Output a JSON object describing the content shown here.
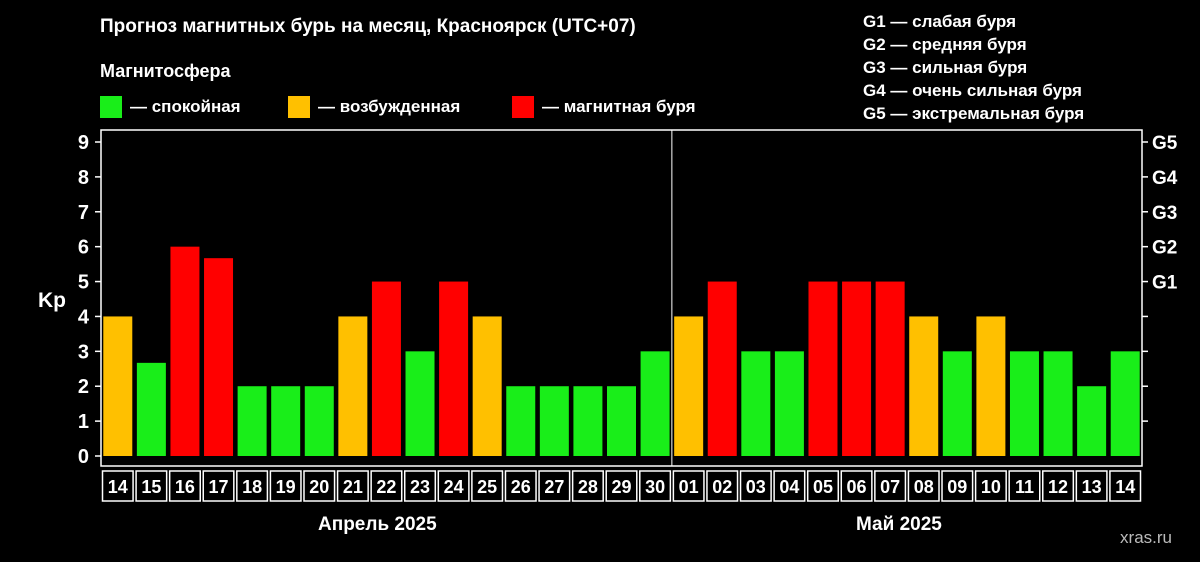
{
  "title": "Прогноз магнитных бурь на месяц, Красноярск (UTC+07)",
  "legend": {
    "title": "Магнитосфера",
    "items": [
      {
        "key": "calm",
        "label": "— спокойная",
        "color": "#19ee19"
      },
      {
        "key": "excited",
        "label": "— возбужденная",
        "color": "#ffc000"
      },
      {
        "key": "storm",
        "label": "— магнитная буря",
        "color": "#ff0000"
      }
    ]
  },
  "g_scale": [
    {
      "label": "G1 — слабая буря"
    },
    {
      "label": "G2 — средняя буря"
    },
    {
      "label": "G3 — сильная буря"
    },
    {
      "label": "G4 — очень сильная буря"
    },
    {
      "label": "G5 — экстремальная буря"
    }
  ],
  "months": [
    {
      "label": "Апрель 2025"
    },
    {
      "label": "Май 2025"
    }
  ],
  "source": "xras.ru",
  "chart_data": {
    "type": "bar",
    "ylabel": "Kp",
    "ylim": [
      0,
      9
    ],
    "y_ticks": [
      "0",
      "1",
      "2",
      "3",
      "4",
      "5",
      "6",
      "7",
      "8",
      "9"
    ],
    "right_ticks": [
      "G1",
      "G2",
      "G3",
      "G4",
      "G5"
    ],
    "right_tick_levels": [
      5,
      6,
      7,
      8,
      9
    ],
    "categories": [
      "14",
      "15",
      "16",
      "17",
      "18",
      "19",
      "20",
      "21",
      "22",
      "23",
      "24",
      "25",
      "26",
      "27",
      "28",
      "29",
      "30",
      "01",
      "02",
      "03",
      "04",
      "05",
      "06",
      "07",
      "08",
      "09",
      "10",
      "11",
      "12",
      "13",
      "14"
    ],
    "values": [
      4,
      2.67,
      6,
      5.67,
      2,
      2,
      2,
      4,
      5,
      3,
      5,
      4,
      2,
      2,
      2,
      2,
      3,
      4,
      5,
      3,
      3,
      5,
      5,
      5,
      4,
      3,
      4,
      3,
      3,
      2,
      3
    ],
    "level": [
      "excited",
      "calm",
      "storm",
      "storm",
      "calm",
      "calm",
      "calm",
      "excited",
      "storm",
      "calm",
      "storm",
      "excited",
      "calm",
      "calm",
      "calm",
      "calm",
      "calm",
      "excited",
      "storm",
      "calm",
      "calm",
      "storm",
      "storm",
      "storm",
      "excited",
      "calm",
      "excited",
      "calm",
      "calm",
      "calm",
      "calm"
    ],
    "month_split_after_index": 16,
    "grid": false
  }
}
